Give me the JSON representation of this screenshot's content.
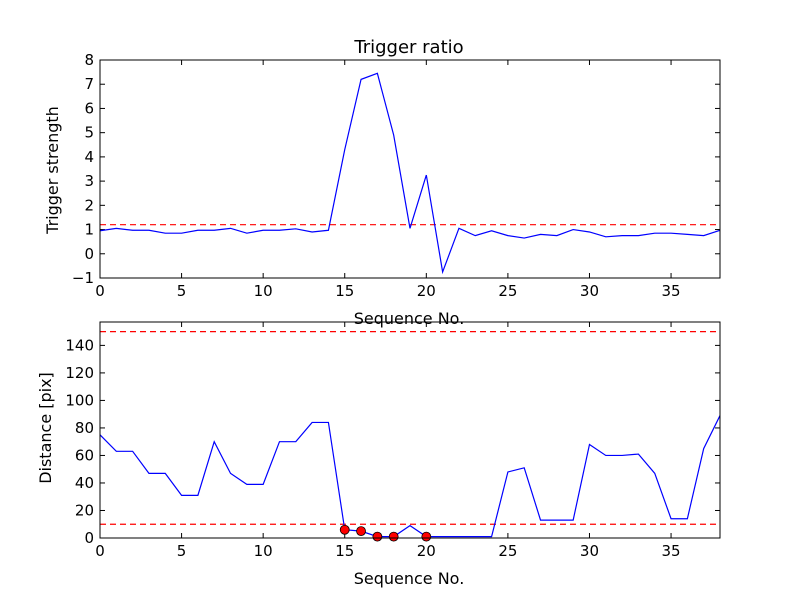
{
  "chart_data": [
    {
      "type": "line",
      "title": "Trigger ratio",
      "xlabel": "Sequence No.",
      "ylabel": "Trigger strength",
      "xlim": [
        0,
        38
      ],
      "ylim": [
        -1,
        8
      ],
      "xticks": [
        0,
        5,
        10,
        15,
        20,
        25,
        30,
        35
      ],
      "yticks": [
        -1,
        0,
        1,
        2,
        3,
        4,
        5,
        6,
        7,
        8
      ],
      "grid": false,
      "series": [
        {
          "color": "#0000ff",
          "x": [
            0,
            1,
            2,
            3,
            4,
            5,
            6,
            7,
            8,
            9,
            10,
            11,
            12,
            13,
            14,
            15,
            16,
            17,
            18,
            19,
            20,
            21,
            22,
            23,
            24,
            25,
            26,
            27,
            28,
            29,
            30,
            31,
            32,
            33,
            34,
            35,
            36,
            37,
            38
          ],
          "values": [
            0.95,
            1.05,
            0.97,
            0.97,
            0.85,
            0.85,
            0.97,
            0.97,
            1.05,
            0.85,
            0.97,
            0.97,
            1.03,
            0.9,
            0.97,
            4.3,
            7.2,
            7.45,
            4.9,
            1.05,
            3.25,
            -0.75,
            1.05,
            0.75,
            0.95,
            0.75,
            0.65,
            0.8,
            0.75,
            1.0,
            0.9,
            0.7,
            0.75,
            0.75,
            0.85,
            0.85,
            0.8,
            0.75,
            0.97
          ]
        }
      ],
      "hlines": [
        {
          "y": 1.2,
          "color": "#ff0000",
          "style": "dashed"
        }
      ]
    },
    {
      "type": "line",
      "title": "",
      "xlabel": "Sequence No.",
      "ylabel": "Distance [pix]",
      "xlim": [
        0,
        38
      ],
      "ylim": [
        0,
        157
      ],
      "xticks": [
        0,
        5,
        10,
        15,
        20,
        25,
        30,
        35
      ],
      "yticks": [
        0,
        20,
        40,
        60,
        80,
        100,
        120,
        140
      ],
      "grid": false,
      "series": [
        {
          "color": "#0000ff",
          "x": [
            0,
            1,
            2,
            3,
            4,
            5,
            6,
            7,
            8,
            9,
            10,
            11,
            12,
            13,
            14,
            15,
            16,
            17,
            18,
            19,
            20,
            21,
            22,
            23,
            24,
            25,
            26,
            27,
            28,
            29,
            30,
            31,
            32,
            33,
            34,
            35,
            36,
            37,
            38
          ],
          "values": [
            75,
            63,
            63,
            47,
            47,
            31,
            31,
            70,
            47,
            39,
            39,
            70,
            70,
            84,
            84,
            6,
            5,
            1,
            1,
            9,
            1,
            1,
            1,
            1,
            1,
            48,
            51,
            13,
            13,
            13,
            68,
            60,
            60,
            61,
            47,
            14,
            14,
            65,
            89
          ]
        }
      ],
      "markers": {
        "color": "#ff0000",
        "x": [
          15,
          16,
          17,
          18,
          20
        ],
        "values": [
          6,
          5,
          1,
          1,
          1
        ]
      },
      "hlines": [
        {
          "y": 150,
          "color": "#ff0000",
          "style": "dashed"
        },
        {
          "y": 10,
          "color": "#ff0000",
          "style": "dashed"
        }
      ]
    }
  ]
}
